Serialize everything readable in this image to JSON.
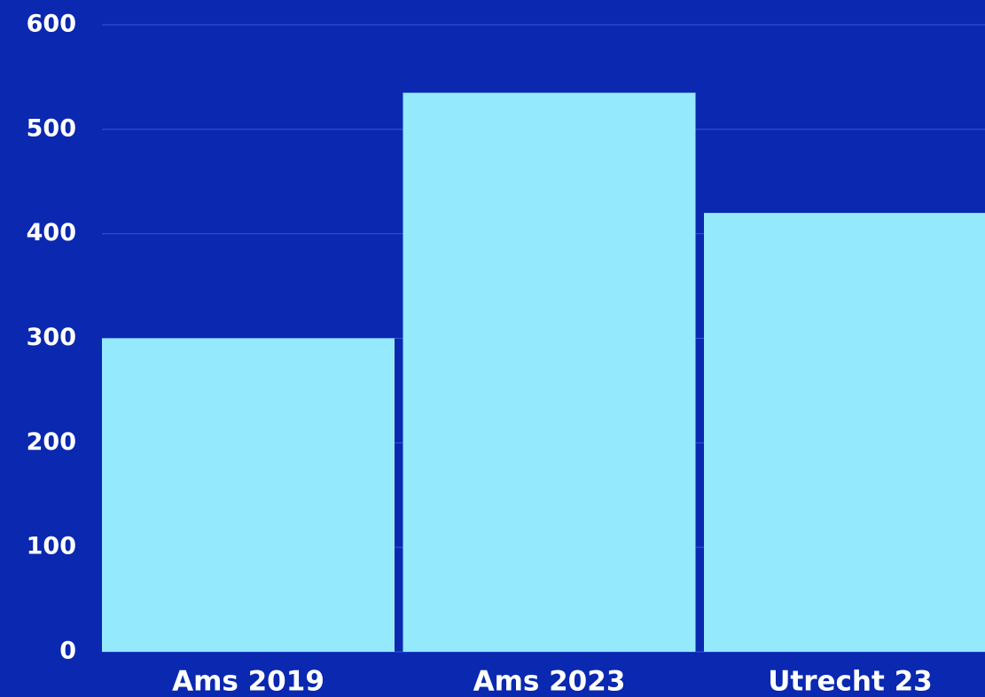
{
  "chart_data": {
    "type": "bar",
    "categories": [
      "Ams 2019",
      "Ams 2023",
      "Utrecht 23"
    ],
    "values": [
      300,
      535,
      420
    ],
    "color": "#95e9fc",
    "ylim": [
      0,
      600
    ],
    "yticks": [
      0,
      100,
      200,
      300,
      400,
      500,
      600
    ],
    "grid": true
  }
}
